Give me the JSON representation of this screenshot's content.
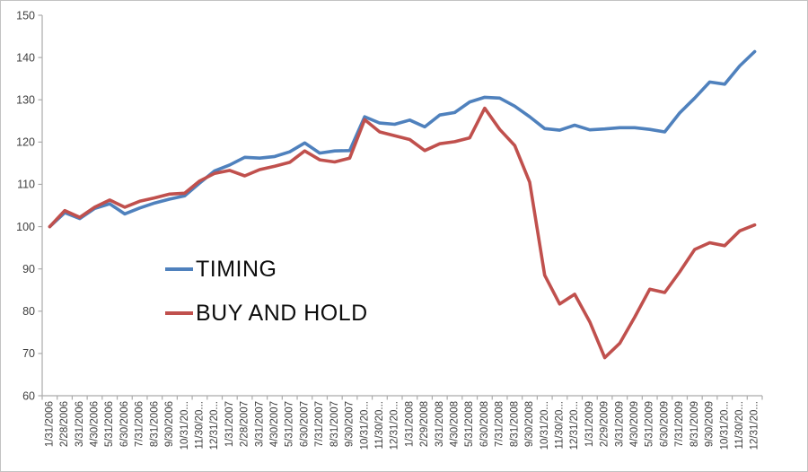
{
  "chart_data": {
    "type": "line",
    "title": "",
    "xlabel": "",
    "ylabel": "",
    "ylim": [
      60,
      150
    ],
    "ytick_step": 10,
    "grid": "off",
    "legend_position": "inside-left-middle",
    "x_labels_rotation": -90,
    "categories": [
      "1/31/2006",
      "2/28/2006",
      "3/31/2006",
      "4/30/2006",
      "5/31/2006",
      "6/30/2006",
      "7/31/2006",
      "8/31/2006",
      "9/30/2006",
      "10/31/20...",
      "11/30/20...",
      "12/31/20...",
      "1/31/2007",
      "2/28/2007",
      "3/31/2007",
      "4/30/2007",
      "5/31/2007",
      "6/30/2007",
      "7/31/2007",
      "8/31/2007",
      "9/30/2007",
      "10/31/20...",
      "11/30/20...",
      "12/31/20...",
      "1/31/2008",
      "2/29/2008",
      "3/31/2008",
      "4/30/2008",
      "5/31/2008",
      "6/30/2008",
      "7/31/2008",
      "8/31/2008",
      "9/30/2008",
      "10/31/20...",
      "11/30/20...",
      "12/31/20...",
      "1/31/2009",
      "2/29/2009",
      "3/31/2009",
      "4/30/2009",
      "5/31/2009",
      "6/30/2009",
      "7/31/2009",
      "8/31/2009",
      "9/30/2009",
      "10/31/20...",
      "11/30/20...",
      "12/31/20..."
    ],
    "series": [
      {
        "name": "TIMING",
        "color": "#4F81BD",
        "values": [
          100,
          103.3,
          101.9,
          104.3,
          105.4,
          103,
          104.4,
          105.6,
          106.5,
          107.3,
          110.3,
          113.2,
          114.6,
          116.4,
          116.2,
          116.6,
          117.7,
          119.8,
          117.4,
          117.9,
          118,
          126,
          124.5,
          124.2,
          125.2,
          123.6,
          126.4,
          127,
          129.5,
          130.6,
          130.4,
          128.5,
          126,
          123.2,
          122.8,
          124,
          122.9,
          123.1,
          123.4,
          123.4,
          123,
          122.4,
          126.9,
          130.4,
          134.2,
          133.7,
          138,
          141.4
        ]
      },
      {
        "name": "BUY AND HOLD",
        "color": "#C0504D",
        "values": [
          100,
          103.8,
          102.2,
          104.6,
          106.3,
          104.6,
          106,
          106.8,
          107.7,
          107.9,
          110.8,
          112.6,
          113.3,
          112,
          113.5,
          114.3,
          115.2,
          117.9,
          115.8,
          115.3,
          116.2,
          125.3,
          122.4,
          121.5,
          120.6,
          118,
          119.6,
          120.1,
          121,
          128,
          123,
          119.2,
          110.5,
          88.5,
          81.7,
          84,
          77.5,
          69,
          72.4,
          78.6,
          85.2,
          84.4,
          89.3,
          94.6,
          96.2,
          95.5,
          99,
          100.4
        ]
      }
    ]
  },
  "colors": {
    "axis": "#ababab",
    "tick_label": "#3f3f3f",
    "legend_text": "#0d0d0d",
    "background": "#ffffff",
    "border": "#c3c3c3"
  }
}
